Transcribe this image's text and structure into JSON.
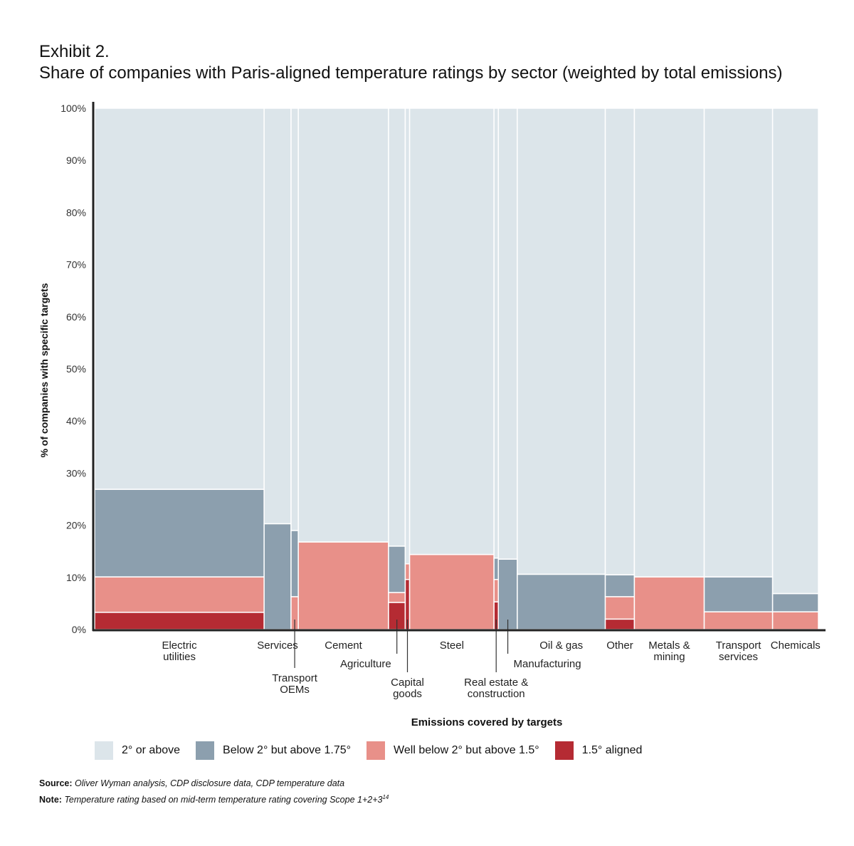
{
  "title": {
    "line1": "Exhibit 2.",
    "line2": "Share of companies with Paris-aligned temperature ratings by sector (weighted by total emissions)"
  },
  "footer": {
    "source_label": "Source:",
    "source_text": "Oliver Wyman analysis, CDP disclosure data, CDP temperature data",
    "note_label": "Note:",
    "note_text": "Temperature rating based on mid-term temperature rating covering Scope 1+2+3",
    "note_sup": "14"
  },
  "chart_data": {
    "type": "bar",
    "subtype": "marimekko-stacked",
    "title": "Share of companies with Paris-aligned temperature ratings by sector (weighted by total emissions)",
    "ylabel": "% of companies with specific targets",
    "xlabel": "Emissions covered by targets",
    "ylim": [
      0,
      100
    ],
    "yticks": [
      "0%",
      "10%",
      "20%",
      "30%",
      "40%",
      "50%",
      "60%",
      "70%",
      "80%",
      "90%",
      "100%"
    ],
    "grid": false,
    "legend_position": "bottom",
    "series": [
      {
        "name": "1.5° aligned",
        "color": "#b52b33"
      },
      {
        "name": "Well below 2° but above 1.5°",
        "color": "#e89089"
      },
      {
        "name": "Below 2° but above 1.75°",
        "color": "#8c9fae"
      },
      {
        "name": "2° or above",
        "color": "#dce5ea"
      }
    ],
    "categories": [
      {
        "name": "Electric utilities",
        "label_lines": [
          "Electric",
          "utilities"
        ],
        "width": 23.3,
        "values": [
          3.3,
          6.8,
          16.8,
          73.1
        ],
        "label_style": "center"
      },
      {
        "name": "Services",
        "label_lines": [
          "Services"
        ],
        "width": 3.7,
        "values": [
          0,
          0,
          20.3,
          79.7
        ],
        "label_style": "center"
      },
      {
        "name": "Transport OEMs",
        "label_lines": [
          "Transport",
          "OEMs"
        ],
        "width": 1.0,
        "values": [
          0,
          6.3,
          12.7,
          81.0
        ],
        "label_style": "leader"
      },
      {
        "name": "Cement",
        "label_lines": [
          "Cement"
        ],
        "width": 12.4,
        "values": [
          0,
          16.8,
          0,
          83.2
        ],
        "label_style": "center"
      },
      {
        "name": "Agriculture",
        "label_lines": [
          "Agriculture"
        ],
        "width": 2.3,
        "values": [
          5.2,
          1.9,
          8.9,
          84.0
        ],
        "label_style": "leader"
      },
      {
        "name": "Capital goods",
        "label_lines": [
          "Capital",
          "goods"
        ],
        "width": 0.6,
        "values": [
          9.6,
          3.0,
          0,
          87.4
        ],
        "label_style": "leader"
      },
      {
        "name": "Steel",
        "label_lines": [
          "Steel"
        ],
        "width": 11.6,
        "values": [
          0,
          14.4,
          0,
          85.6
        ],
        "label_style": "center"
      },
      {
        "name": "Real estate & construction",
        "label_lines": [
          "Real estate &",
          "construction"
        ],
        "width": 0.6,
        "values": [
          5.3,
          4.3,
          4.1,
          86.3
        ],
        "label_style": "leader"
      },
      {
        "name": "Manufacturing",
        "label_lines": [
          "Manufacturing"
        ],
        "width": 2.6,
        "values": [
          0,
          0,
          13.5,
          86.5
        ],
        "label_style": "leader"
      },
      {
        "name": "Oil & gas",
        "label_lines": [
          "Oil & gas"
        ],
        "width": 12.1,
        "values": [
          0,
          0,
          10.6,
          89.4
        ],
        "label_style": "center"
      },
      {
        "name": "Other",
        "label_lines": [
          "Other"
        ],
        "width": 4.0,
        "values": [
          2.0,
          4.3,
          4.2,
          89.5
        ],
        "label_style": "center"
      },
      {
        "name": "Metals & mining",
        "label_lines": [
          "Metals &",
          "mining"
        ],
        "width": 9.6,
        "values": [
          0,
          10.1,
          0,
          89.9
        ],
        "label_style": "center"
      },
      {
        "name": "Transport services",
        "label_lines": [
          "Transport",
          "services"
        ],
        "width": 9.4,
        "values": [
          0,
          3.4,
          6.7,
          89.9
        ],
        "label_style": "center"
      },
      {
        "name": "Chemicals",
        "label_lines": [
          "Chemicals"
        ],
        "width": 6.3,
        "values": [
          0,
          3.4,
          3.5,
          93.1
        ],
        "label_style": "center"
      }
    ]
  }
}
